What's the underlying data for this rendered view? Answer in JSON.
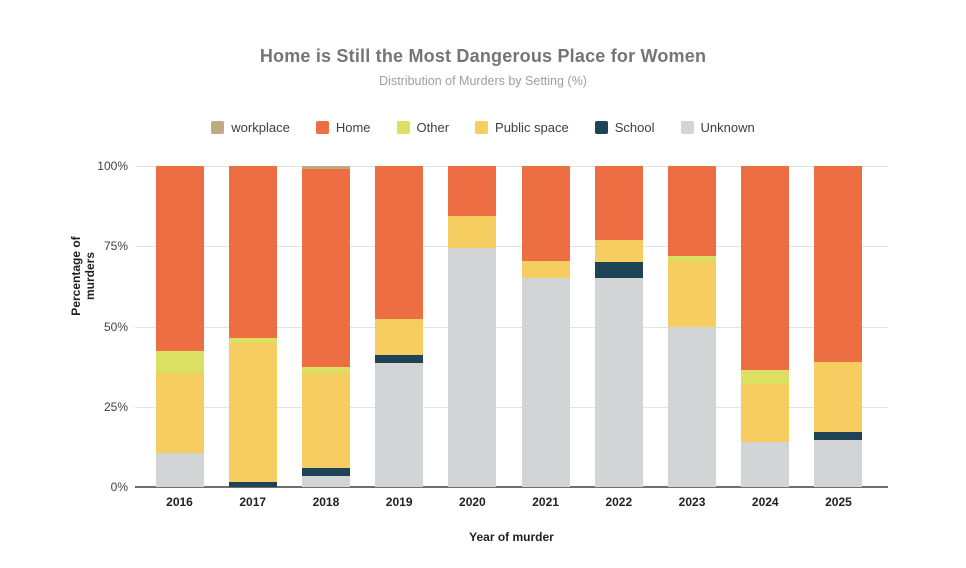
{
  "chart_data": {
    "type": "bar",
    "variant": "stacked-percentage-column",
    "title": "Home is Still the Most Dangerous Place for Women",
    "subtitle": "Distribution of Murders by Setting (%)",
    "xlabel": "Year of murder",
    "ylabel": "Percentage of murders",
    "categories": [
      "2016",
      "2017",
      "2018",
      "2019",
      "2020",
      "2021",
      "2022",
      "2023",
      "2024",
      "2025"
    ],
    "legend_order": [
      "workplace",
      "Home",
      "Other",
      "Public space",
      "School",
      "Unknown"
    ],
    "stack_order_bottom_to_top": [
      "Unknown",
      "School",
      "Public space",
      "Other",
      "Home",
      "workplace"
    ],
    "series": [
      {
        "name": "workplace",
        "color": "#bdac82",
        "values": [
          0,
          0,
          1,
          0,
          0,
          0,
          0,
          0,
          0,
          0
        ]
      },
      {
        "name": "Home",
        "color": "#ec6e42",
        "values": [
          57.5,
          53.5,
          61.5,
          47.5,
          15.5,
          29.5,
          23,
          28,
          63.5,
          61
        ]
      },
      {
        "name": "Other",
        "color": "#dbdf62",
        "values": [
          7,
          1.5,
          2,
          0,
          0,
          0,
          0,
          1.5,
          4.5,
          0
        ]
      },
      {
        "name": "Public space",
        "color": "#f6cd60",
        "values": [
          25,
          43.5,
          29.5,
          11.5,
          10,
          5.5,
          7,
          20.5,
          18,
          22
        ]
      },
      {
        "name": "School",
        "color": "#1e4356",
        "values": [
          0,
          1.5,
          2.5,
          2.5,
          0,
          0,
          5,
          0,
          0,
          2.5
        ]
      },
      {
        "name": "Unknown",
        "color": "#d3d4d6",
        "values": [
          10.5,
          0,
          3.5,
          38.5,
          74.5,
          65,
          65,
          50,
          14,
          14.5
        ]
      }
    ],
    "yticks": [
      {
        "label": "0%",
        "value": 0
      },
      {
        "label": "25%",
        "value": 25
      },
      {
        "label": "50%",
        "value": 50
      },
      {
        "label": "75%",
        "value": 75
      },
      {
        "label": "100%",
        "value": 100
      }
    ],
    "ylim": [
      0,
      100
    ],
    "grid": "horizontal",
    "legend_position": "top-center",
    "colors": {
      "grid_line": "#e3e3e3",
      "axis_line": "#6f6f6f",
      "title_text": "#757575",
      "subtitle_text": "#9e9e9e",
      "legend_text": "#3c4043",
      "tick_text": "#424242",
      "category_text": "#212121"
    }
  }
}
